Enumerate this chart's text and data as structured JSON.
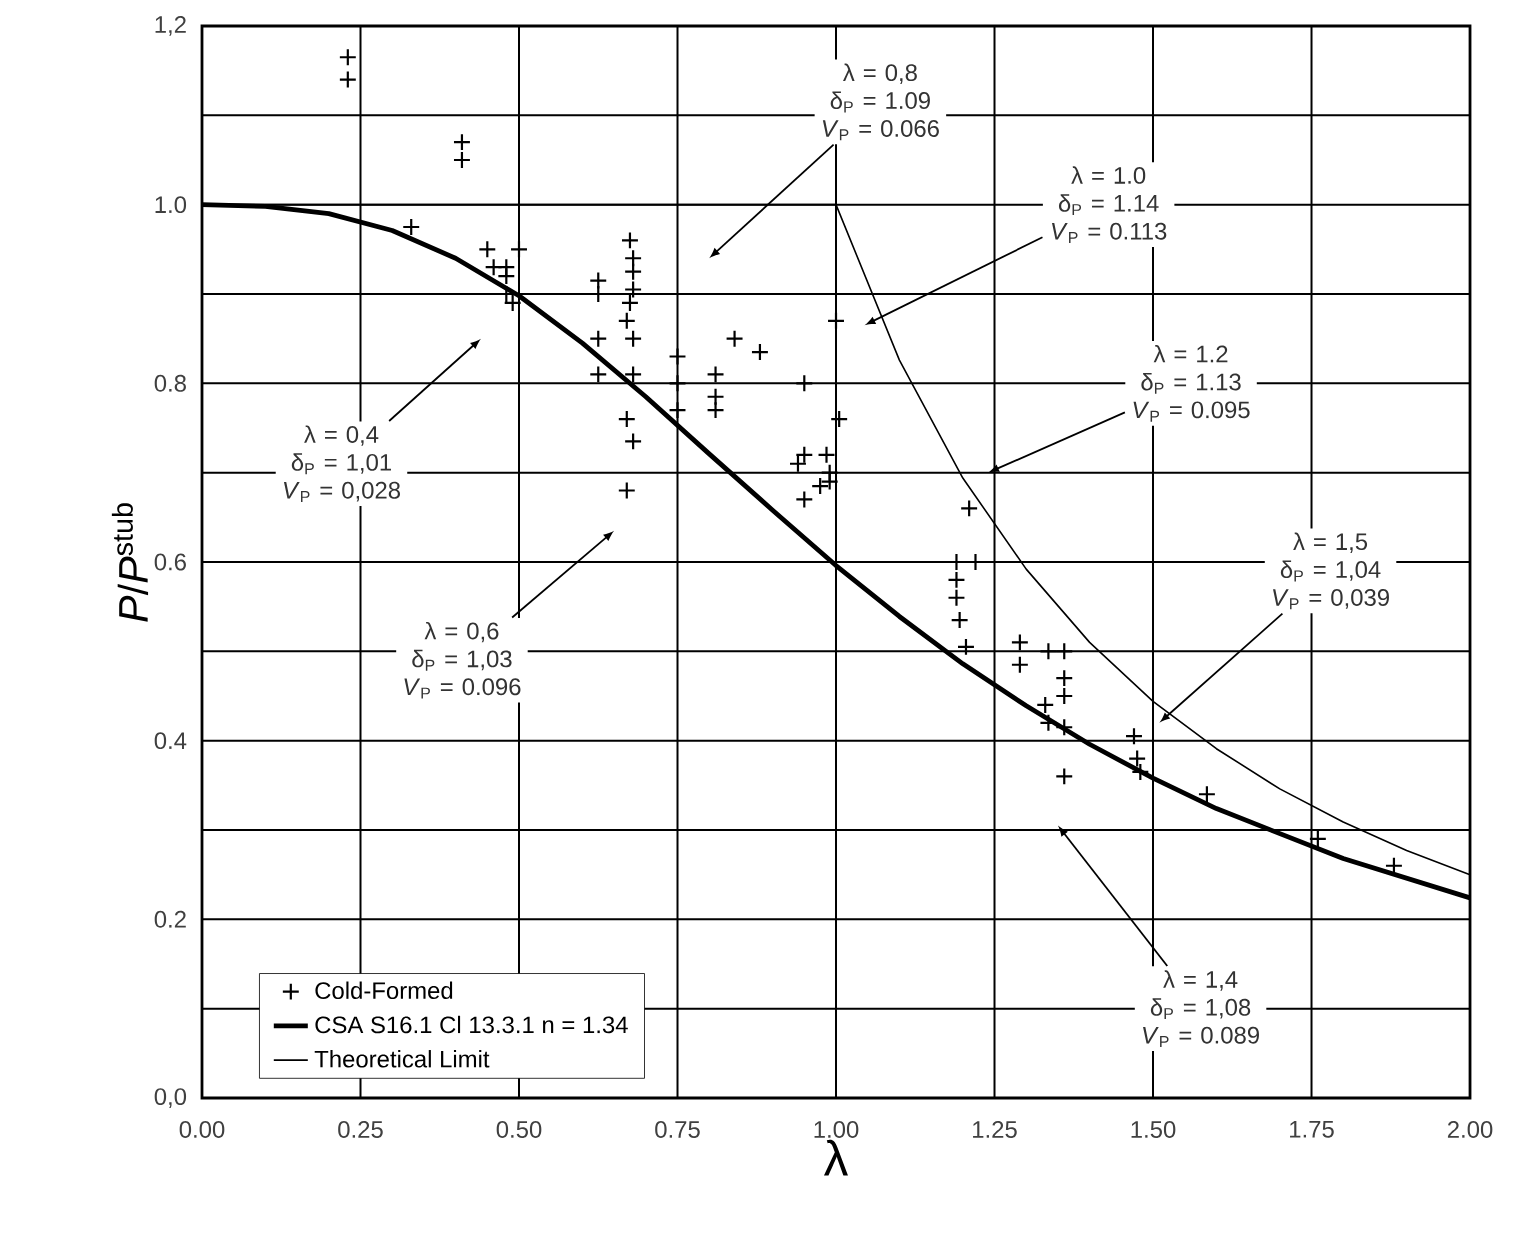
{
  "chart_data": {
    "type": "scatter",
    "xlabel": "λ",
    "ylabel": "*P*/*P*$^{stub}$",
    "xlim": [
      0,
      2
    ],
    "ylim": [
      0,
      1.2
    ],
    "xticks": [
      {
        "value": 0,
        "label": "0.00"
      },
      {
        "value": 0.25,
        "label": "0.25"
      },
      {
        "value": 0.5,
        "label": "0.50"
      },
      {
        "value": 0.75,
        "label": "0.75"
      },
      {
        "value": 1,
        "label": "1.00"
      },
      {
        "value": 1.25,
        "label": "1.25"
      },
      {
        "value": 1.5,
        "label": "1.50"
      },
      {
        "value": 1.75,
        "label": "1.75"
      },
      {
        "value": 2,
        "label": "2.00"
      }
    ],
    "yticks": [
      {
        "value": 0,
        "label": "0,0"
      },
      {
        "value": 0.1,
        "label": null
      },
      {
        "value": 0.2,
        "label": "0.2"
      },
      {
        "value": 0.3,
        "label": null
      },
      {
        "value": 0.4,
        "label": "0.4"
      },
      {
        "value": 0.5,
        "label": null
      },
      {
        "value": 0.6,
        "label": "0.6"
      },
      {
        "value": 0.7,
        "label": null
      },
      {
        "value": 0.8,
        "label": "0.8"
      },
      {
        "value": 0.9,
        "label": null
      },
      {
        "value": 1.0,
        "label": "1.0"
      },
      {
        "value": 1.1,
        "label": null
      },
      {
        "value": 1.2,
        "label": "1,2"
      }
    ],
    "grid": true,
    "legend": "bottom left",
    "series": [
      {
        "name": "Cold-Formed",
        "marker": "cross",
        "color": "#000000",
        "x": [
          0.23,
          0.23,
          0.41,
          0.41,
          0.33,
          0.45,
          0.46,
          0.48,
          0.5,
          0.48,
          0.48,
          0.49,
          0.625,
          0.625,
          0.675,
          0.68,
          0.68,
          0.68,
          0.675,
          0.67,
          0.68,
          0.625,
          0.625,
          0.68,
          0.67,
          0.68,
          0.67,
          0.75,
          0.75,
          0.75,
          0.81,
          0.81,
          0.81,
          0.84,
          0.88,
          0.95,
          0.95,
          0.985,
          0.99,
          0.975,
          0.95,
          0.99,
          1.005,
          1.0,
          0.94,
          1.21,
          1.19,
          1.19,
          1.19,
          1.195,
          1.205,
          1.22,
          1.29,
          1.29,
          1.335,
          1.36,
          1.36,
          1.36,
          1.33,
          1.335,
          1.36,
          1.36,
          1.47,
          1.475,
          1.48,
          1.585,
          1.76,
          1.88
        ],
        "values": [
          1.165,
          1.14,
          1.07,
          1.05,
          0.975,
          0.95,
          0.93,
          0.93,
          0.95,
          0.92,
          0.9,
          0.89,
          0.915,
          0.9,
          0.96,
          0.94,
          0.925,
          0.905,
          0.89,
          0.87,
          0.85,
          0.85,
          0.81,
          0.81,
          0.76,
          0.735,
          0.68,
          0.83,
          0.8,
          0.77,
          0.81,
          0.785,
          0.77,
          0.85,
          0.835,
          0.8,
          0.72,
          0.72,
          0.7,
          0.685,
          0.67,
          0.69,
          0.76,
          0.87,
          0.71,
          0.66,
          0.6,
          0.58,
          0.56,
          0.535,
          0.505,
          0.6,
          0.51,
          0.485,
          0.5,
          0.5,
          0.47,
          0.45,
          0.44,
          0.42,
          0.415,
          0.36,
          0.405,
          0.38,
          0.365,
          0.34,
          0.29,
          0.26
        ]
      },
      {
        "name": "CSA S16.1 Cl 13.3.1  n = 1.34",
        "type": "line",
        "color": "#000000",
        "x": [
          0,
          0.1,
          0.2,
          0.3,
          0.4,
          0.5,
          0.6,
          0.7,
          0.8,
          0.9,
          1.0,
          1.1,
          1.2,
          1.3,
          1.4,
          1.5,
          1.6,
          1.8,
          2.0
        ],
        "values": [
          1.0,
          0.998,
          0.99,
          0.971,
          0.94,
          0.898,
          0.845,
          0.785,
          0.721,
          0.658,
          0.596,
          0.539,
          0.486,
          0.439,
          0.396,
          0.358,
          0.324,
          0.268,
          0.224
        ]
      },
      {
        "name": "Theoretical Limit",
        "type": "line",
        "color": "#000000",
        "x": [
          0,
          1.0,
          1.1,
          1.2,
          1.3,
          1.4,
          1.5,
          1.6,
          1.7,
          1.8,
          1.9,
          2.0
        ],
        "values": [
          1.0,
          1.0,
          0.826,
          0.694,
          0.592,
          0.51,
          0.444,
          0.391,
          0.346,
          0.309,
          0.277,
          0.25
        ]
      }
    ],
    "annotations": [
      "λ = 0,4 δ$_{P}$ = 1,01 *V*$_{P}$ = 0,028",
      "λ = 0,6 δ$_{P}$ = 1,03 *V*$_{P}$ = 0.096",
      "λ = 0,8 δ$_{P}$ = 1.09 *V*$_{P}$ = 0.066",
      "λ = 1.0 δ$_{P}$ = 1.14 *V*$_{P}$ = 0.113",
      "λ = 1.2 δ$_{P}$ = 1.13 *V*$_{P}$ = 0.095",
      "λ = 1,5 δ$_{P}$ = 1,04 *V*$_{P}$ = 0,039",
      "λ = 1,4 δ$_{P}$ = 1,08 *V*$_{P}$ = 0.089"
    ]
  }
}
